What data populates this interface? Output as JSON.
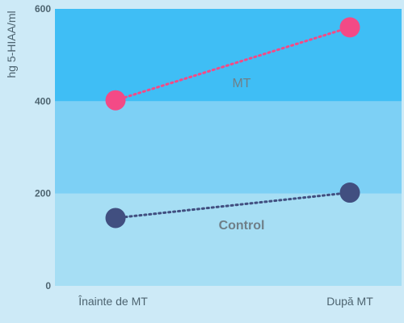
{
  "chart_data": {
    "type": "line",
    "ylabel": "hg 5-HIAA/ml",
    "categories": [
      "Înainte de MT",
      "După MT"
    ],
    "ylim": [
      0,
      600
    ],
    "yticks": [
      "0",
      "200",
      "400",
      "600"
    ],
    "grid": false,
    "bands": [
      {
        "from": 0,
        "to": 200,
        "color": "#a6def4"
      },
      {
        "from": 200,
        "to": 400,
        "color": "#7dd0f5"
      },
      {
        "from": 400,
        "to": 600,
        "color": "#3fbef5"
      }
    ],
    "series": [
      {
        "name": "MT",
        "values": [
          402,
          560
        ],
        "color": "#f34a86",
        "line_style": "dotted",
        "label_bold": false
      },
      {
        "name": "Control",
        "values": [
          147,
          202
        ],
        "color": "#414f80",
        "line_style": "dotted",
        "label_bold": true
      }
    ]
  }
}
